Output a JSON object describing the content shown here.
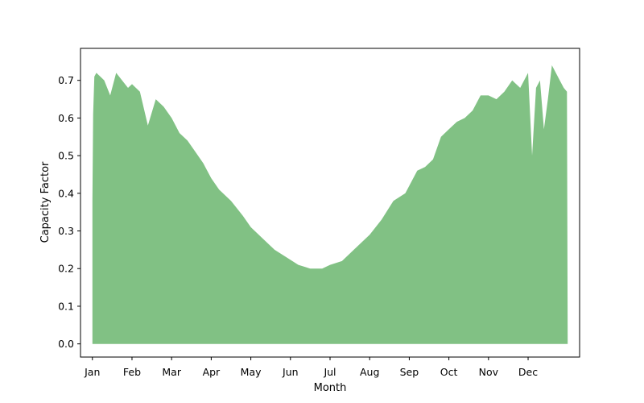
{
  "chart_data": {
    "type": "area",
    "title": "",
    "xlabel": "Month",
    "ylabel": "Capacity Factor",
    "x_ticks": [
      "Jan",
      "Feb",
      "Mar",
      "Apr",
      "May",
      "Jun",
      "Jul",
      "Aug",
      "Sep",
      "Oct",
      "Nov",
      "Dec"
    ],
    "y_ticks": [
      "0.0",
      "0.1",
      "0.2",
      "0.3",
      "0.4",
      "0.5",
      "0.6",
      "0.7"
    ],
    "xlim": [
      -0.3,
      12.3
    ],
    "ylim": [
      -0.035,
      0.785
    ],
    "grid": false,
    "legend": "none",
    "fill_color": "#81c184",
    "series": [
      {
        "x": [
          0.0,
          0.02,
          0.05,
          0.1,
          0.2,
          0.3,
          0.45,
          0.6,
          0.75,
          0.9,
          1.0,
          1.2,
          1.4,
          1.6,
          1.8,
          2.0,
          2.2,
          2.4,
          2.6,
          2.8,
          3.0,
          3.2,
          3.5,
          3.8,
          4.0,
          4.3,
          4.6,
          4.9,
          5.2,
          5.5,
          5.8,
          6.0,
          6.3,
          6.6,
          6.9,
          7.0,
          7.3,
          7.6,
          7.9,
          8.0,
          8.2,
          8.4,
          8.6,
          8.8,
          9.0,
          9.2,
          9.4,
          9.6,
          9.8,
          10.0,
          10.2,
          10.4,
          10.6,
          10.8,
          11.0,
          11.1,
          11.2,
          11.3,
          11.4,
          11.5,
          11.6,
          11.7,
          11.8,
          11.9,
          11.98,
          12.0
        ],
        "upper": [
          0.38,
          0.61,
          0.71,
          0.72,
          0.71,
          0.7,
          0.66,
          0.72,
          0.7,
          0.68,
          0.69,
          0.67,
          0.58,
          0.65,
          0.63,
          0.6,
          0.56,
          0.54,
          0.51,
          0.48,
          0.44,
          0.41,
          0.38,
          0.34,
          0.31,
          0.28,
          0.25,
          0.23,
          0.21,
          0.2,
          0.2,
          0.21,
          0.22,
          0.25,
          0.28,
          0.29,
          0.33,
          0.38,
          0.4,
          0.42,
          0.46,
          0.47,
          0.49,
          0.55,
          0.57,
          0.59,
          0.6,
          0.62,
          0.66,
          0.66,
          0.65,
          0.67,
          0.7,
          0.68,
          0.72,
          0.5,
          0.68,
          0.7,
          0.57,
          0.65,
          0.74,
          0.72,
          0.7,
          0.68,
          0.67,
          0.0
        ],
        "lower": 0
      }
    ]
  }
}
